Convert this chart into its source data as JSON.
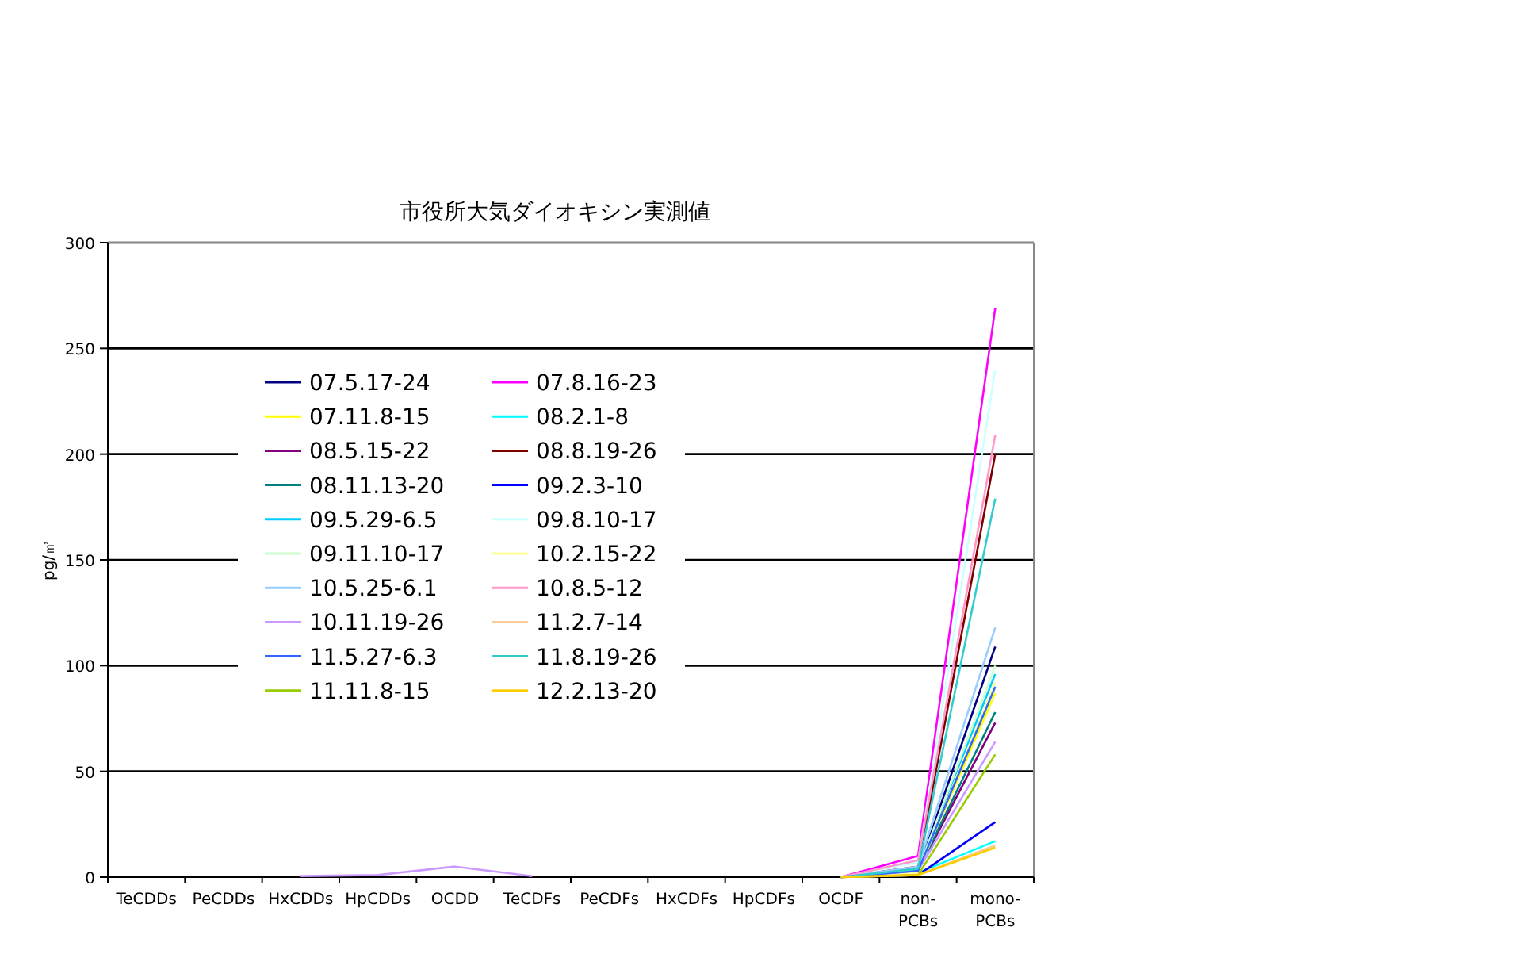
{
  "chart_data": {
    "type": "line",
    "title": "市役所大気ダイオキシン実測値",
    "ylabel": "pg/㎥",
    "categories": [
      "TeCDDs",
      "PeCDDs",
      "HxCDDs",
      "HpCDDs",
      "OCDD",
      "TeCDFs",
      "PeCDFs",
      "HxCDFs",
      "HpCDFs",
      "OCDF",
      "non-\nPCBs",
      "mono-\nPCBs"
    ],
    "ylim": [
      0,
      300
    ],
    "yticks": [
      0,
      50,
      100,
      150,
      200,
      250,
      300
    ],
    "grid": "y",
    "legend": "top left",
    "marker": "none",
    "line_style": "solid",
    "series": [
      {
        "name": "07.5.17-24",
        "color": "#000080",
        "values": [
          null,
          null,
          null,
          null,
          null,
          null,
          null,
          null,
          null,
          0,
          3,
          109
        ]
      },
      {
        "name": "07.8.16-23",
        "color": "#ff00ff",
        "values": [
          null,
          null,
          null,
          null,
          null,
          null,
          null,
          null,
          null,
          0,
          10,
          269
        ]
      },
      {
        "name": "07.11.8-15",
        "color": "#ffff00",
        "values": [
          null,
          null,
          null,
          null,
          null,
          null,
          null,
          null,
          null,
          0,
          3,
          87
        ]
      },
      {
        "name": "08.2.1-8",
        "color": "#00ffff",
        "values": [
          null,
          null,
          null,
          null,
          null,
          null,
          null,
          null,
          null,
          0,
          2,
          17
        ]
      },
      {
        "name": "08.5.15-22",
        "color": "#800080",
        "values": [
          null,
          null,
          null,
          null,
          null,
          null,
          null,
          null,
          null,
          0,
          3,
          73
        ]
      },
      {
        "name": "08.8.19-26",
        "color": "#800000",
        "values": [
          null,
          null,
          null,
          null,
          null,
          null,
          null,
          null,
          null,
          0,
          5,
          200
        ]
      },
      {
        "name": "08.11.13-20",
        "color": "#008080",
        "values": [
          null,
          null,
          null,
          null,
          null,
          null,
          null,
          null,
          null,
          0,
          3,
          78
        ]
      },
      {
        "name": "09.2.3-10",
        "color": "#0000ff",
        "values": [
          null,
          null,
          null,
          null,
          null,
          null,
          null,
          null,
          null,
          0,
          1,
          26
        ]
      },
      {
        "name": "09.5.29-6.5",
        "color": "#00ccff",
        "values": [
          null,
          null,
          null,
          null,
          null,
          null,
          null,
          null,
          null,
          0,
          4,
          96
        ]
      },
      {
        "name": "09.8.10-17",
        "color": "#ccffff",
        "values": [
          null,
          null,
          null,
          null,
          null,
          null,
          null,
          null,
          null,
          0,
          7,
          240
        ]
      },
      {
        "name": "09.11.10-17",
        "color": "#ccffcc",
        "values": [
          null,
          null,
          null,
          null,
          null,
          null,
          null,
          null,
          null,
          0,
          3,
          100
        ]
      },
      {
        "name": "10.2.15-22",
        "color": "#ffff99",
        "values": [
          null,
          null,
          null,
          null,
          null,
          null,
          null,
          null,
          null,
          0,
          2,
          92
        ]
      },
      {
        "name": "10.5.25-6.1",
        "color": "#99ccff",
        "values": [
          null,
          null,
          null,
          null,
          null,
          null,
          null,
          null,
          null,
          0,
          5,
          118
        ]
      },
      {
        "name": "10.8.5-12",
        "color": "#ff99cc",
        "values": [
          null,
          null,
          null,
          null,
          null,
          null,
          null,
          null,
          null,
          0,
          8,
          209
        ]
      },
      {
        "name": "10.11.19-26",
        "color": "#cc99ff",
        "values": [
          null,
          null,
          0.5,
          1,
          5,
          0.5,
          null,
          null,
          null,
          0,
          3,
          64
        ]
      },
      {
        "name": "11.2.7-14",
        "color": "#ffcc99",
        "values": [
          null,
          null,
          null,
          null,
          null,
          null,
          null,
          null,
          null,
          0,
          1,
          15
        ]
      },
      {
        "name": "11.5.27-6.3",
        "color": "#3366ff",
        "values": [
          null,
          null,
          null,
          null,
          null,
          null,
          null,
          null,
          null,
          0,
          3,
          90
        ]
      },
      {
        "name": "11.8.19-26",
        "color": "#33cccc",
        "values": [
          null,
          null,
          null,
          null,
          null,
          null,
          null,
          null,
          null,
          0,
          4,
          179
        ]
      },
      {
        "name": "11.11.8-15",
        "color": "#99cc00",
        "values": [
          null,
          null,
          null,
          null,
          null,
          null,
          null,
          null,
          null,
          0,
          1,
          58
        ]
      },
      {
        "name": "12.2.13-20",
        "color": "#ffcc00",
        "values": [
          null,
          null,
          null,
          null,
          null,
          null,
          null,
          null,
          null,
          0,
          1,
          14
        ]
      }
    ]
  }
}
